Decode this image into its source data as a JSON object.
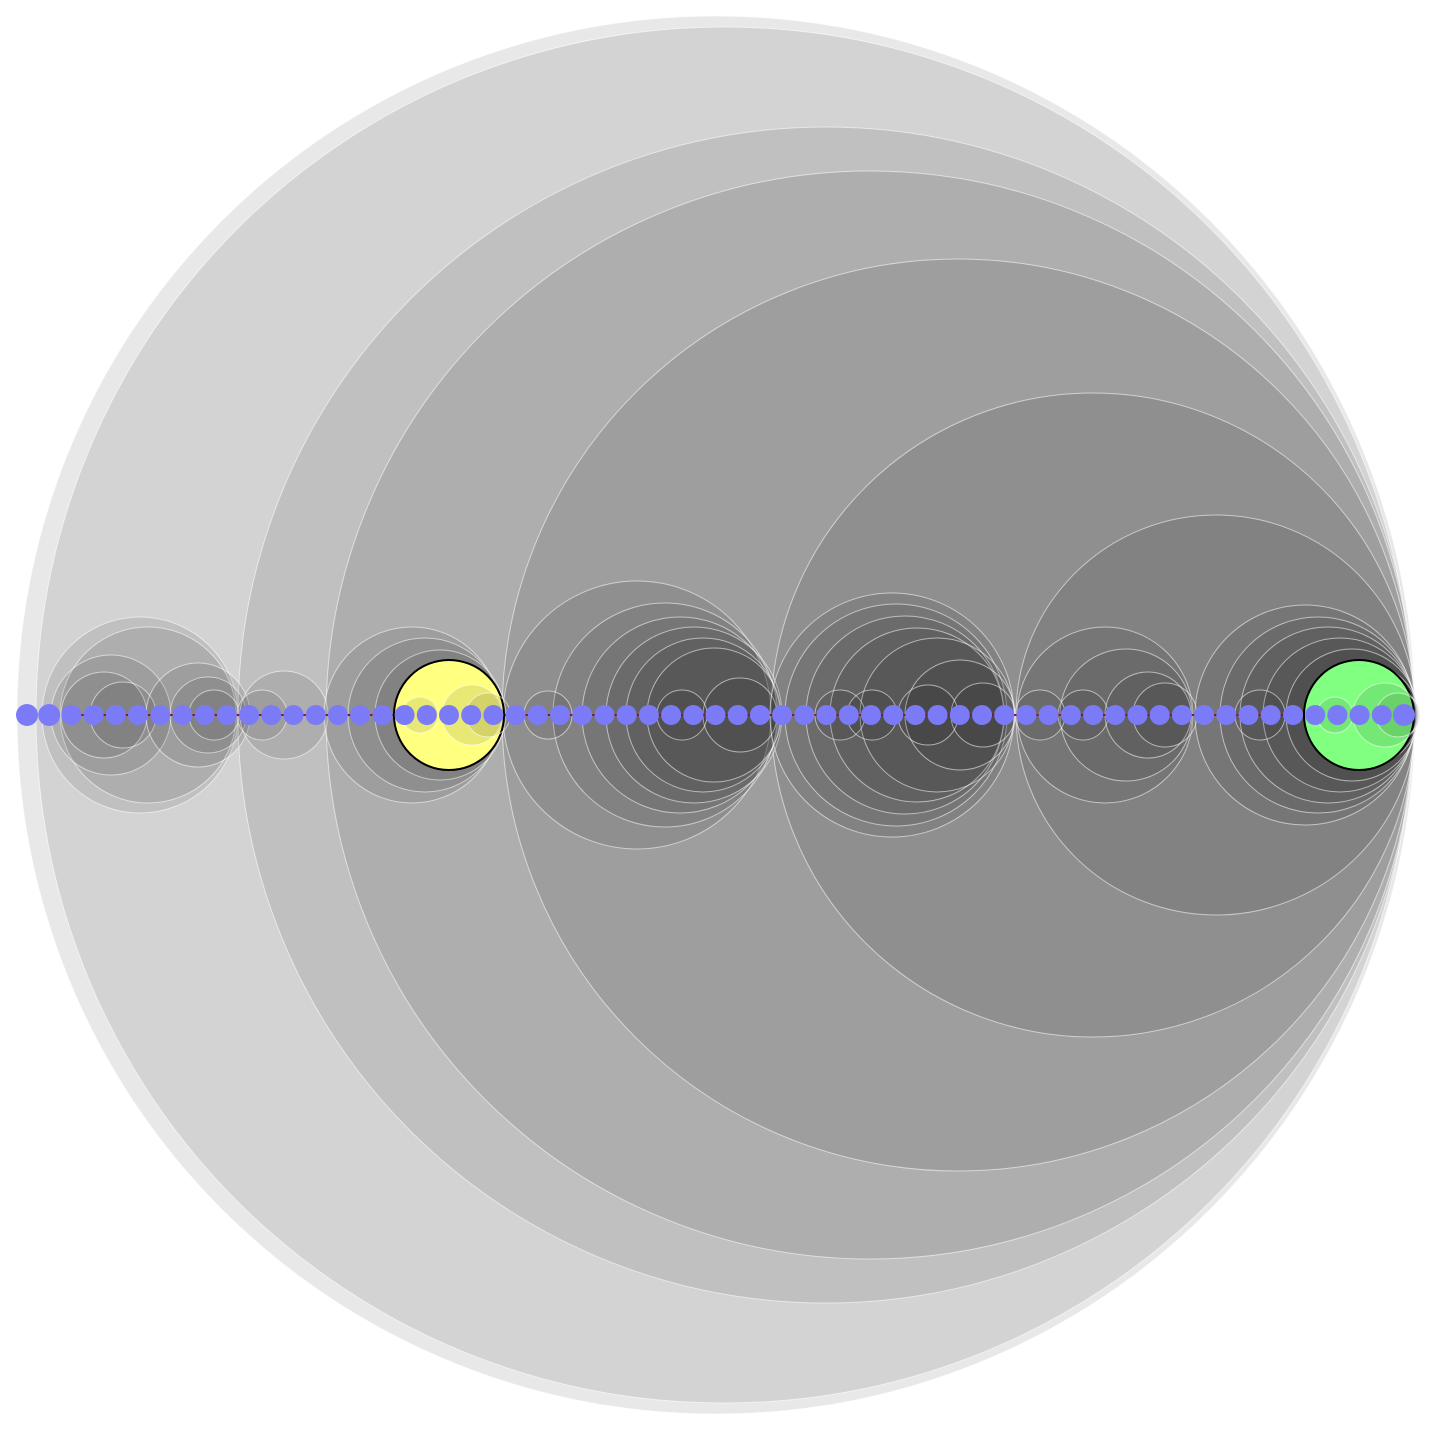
{
  "diagram": {
    "type": "nested-circles",
    "node_count": 63,
    "colors": {
      "background": "#ffffff",
      "nested_circle": "#000000",
      "nested_circle_stroke": "#ffffff",
      "node": "#7b7bf7",
      "axis": "#8a0f3c",
      "highlight_left": "#ffff80",
      "highlight_right": "#80ff80",
      "highlight_stroke": "#000000"
    },
    "highlights": [
      {
        "name": "yellow-circle",
        "color": "#ffff80"
      },
      {
        "name": "green-circle",
        "color": "#80ff80"
      }
    ]
  }
}
